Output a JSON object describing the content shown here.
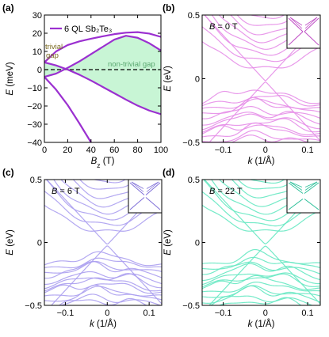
{
  "chart_data": [
    {
      "panel": "(a)",
      "type": "line",
      "legend": "6 QL Sb₂Te₃",
      "legend_position": "top-left",
      "xlabel": "B_z (T)",
      "ylabel": "E (meV)",
      "xlim": [
        0,
        100
      ],
      "ylim": [
        -40,
        30
      ],
      "xticks": [
        0,
        20,
        40,
        60,
        80,
        100
      ],
      "yticks": [
        -40,
        -30,
        -20,
        -10,
        0,
        10,
        20,
        30
      ],
      "line_color": "#9b30d0",
      "fill_color": "#c8f5d5",
      "annotations": [
        {
          "text": "trivial",
          "color": "#7a6a20"
        },
        {
          "text": "gap",
          "color": "#7a6a20"
        },
        {
          "text": "non-trivial gap",
          "color": "#5aa870"
        }
      ],
      "series": [
        {
          "x": [
            0,
            10,
            20,
            30,
            40,
            50,
            60,
            70,
            80,
            90,
            100
          ],
          "y": [
            4,
            10,
            13.5,
            15.5,
            17,
            18.3,
            19.5,
            20.3,
            20.6,
            19.8,
            18
          ]
        },
        {
          "x": [
            0,
            10,
            20,
            30,
            40,
            50,
            60,
            70,
            80,
            90,
            100
          ],
          "y": [
            -4,
            -2.2,
            1,
            4.5,
            8.5,
            12.5,
            16.5,
            18.6,
            17.5,
            14.5,
            10.5
          ]
        },
        {
          "x": [
            0,
            10,
            20,
            30,
            40,
            50,
            60,
            70,
            80,
            90,
            100
          ],
          "y": [
            4,
            2.3,
            0,
            -2.8,
            -6,
            -9.5,
            -13,
            -16.5,
            -19.8,
            -22.5,
            -24.5
          ]
        },
        {
          "x": [
            0,
            10,
            20,
            30,
            40
          ],
          "y": [
            -4,
            -11,
            -19.5,
            -29.5,
            -40
          ]
        }
      ],
      "dashed_line": {
        "y": 0
      }
    },
    {
      "panel": "(b)",
      "type": "line",
      "field_label": "B = 0 T",
      "xlabel": "k (1/Å)",
      "ylabel": "E (eV)",
      "xlim": [
        -0.15,
        0.13
      ],
      "ylim": [
        -0.5,
        0.5
      ],
      "xticks": [
        -0.1,
        0,
        0.1
      ],
      "yticks": [
        -0.5,
        0,
        0.5
      ],
      "color": "#e68ee8",
      "inset_color": "#c04fc6"
    },
    {
      "panel": "(c)",
      "type": "line",
      "field_label": "B = 6 T",
      "xlabel": "k (1/Å)",
      "ylabel": "E (eV)",
      "xlim": [
        -0.15,
        0.13
      ],
      "ylim": [
        -0.5,
        0.5
      ],
      "xticks": [
        -0.1,
        0,
        0.1
      ],
      "yticks": [
        -0.5,
        0,
        0.5
      ],
      "color": "#ab9ff0",
      "inset_color": "#7f6fd8"
    },
    {
      "panel": "(d)",
      "type": "line",
      "field_label": "B = 22 T",
      "xlabel": "k (1/Å)",
      "ylabel": "E (eV)",
      "xlim": [
        -0.15,
        0.13
      ],
      "ylim": [
        -0.5,
        0.5
      ],
      "xticks": [
        -0.1,
        0,
        0.1
      ],
      "yticks": [
        -0.5,
        0,
        0.5
      ],
      "color": "#66e8c2",
      "inset_color": "#2fc09a"
    }
  ]
}
